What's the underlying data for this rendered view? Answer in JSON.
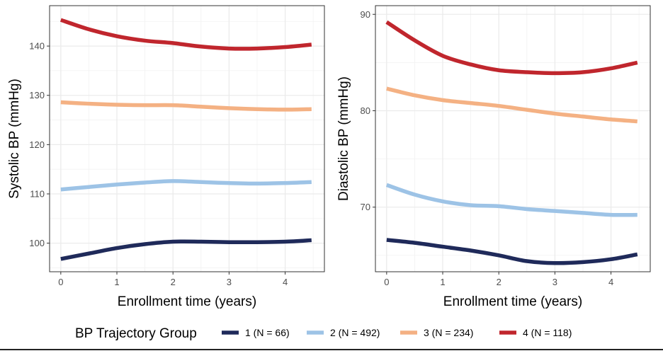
{
  "chart_data": [
    {
      "type": "line",
      "panel": "left",
      "xlabel": "Enrollment time (years)",
      "ylabel": "Systolic BP (mmHg)",
      "xlim": [
        -0.2,
        4.7
      ],
      "ylim": [
        94.2,
        148.2
      ],
      "xticks": [
        0,
        1,
        2,
        3,
        4
      ],
      "xtick_labels": [
        "0",
        "1",
        "2",
        "3",
        "4"
      ],
      "yticks": [
        100,
        110,
        120,
        130,
        140
      ],
      "ytick_labels": [
        "100",
        "110",
        "120",
        "130",
        "140"
      ],
      "grid": true,
      "series": [
        {
          "name": "1 (N = 66)",
          "color": "#1f2a5a",
          "x": [
            0,
            0.5,
            1,
            1.5,
            2,
            2.5,
            3,
            3.5,
            4,
            4.47
          ],
          "y": [
            96.8,
            97.9,
            99.0,
            99.8,
            100.3,
            100.3,
            100.2,
            100.2,
            100.3,
            100.6
          ]
        },
        {
          "name": "2 (N = 492)",
          "color": "#9dc3e6",
          "x": [
            0,
            0.5,
            1,
            1.5,
            2,
            2.5,
            3,
            3.5,
            4,
            4.47
          ],
          "y": [
            110.9,
            111.4,
            111.9,
            112.3,
            112.6,
            112.4,
            112.2,
            112.1,
            112.2,
            112.4
          ]
        },
        {
          "name": "3 (N = 234)",
          "color": "#f4b183",
          "x": [
            0,
            0.5,
            1,
            1.5,
            2,
            2.5,
            3,
            3.5,
            4,
            4.47
          ],
          "y": [
            128.6,
            128.3,
            128.1,
            128.0,
            128.0,
            127.7,
            127.4,
            127.2,
            127.1,
            127.2
          ]
        },
        {
          "name": "4 (N = 118)",
          "color": "#c0262d",
          "x": [
            0,
            0.5,
            1,
            1.5,
            2,
            2.5,
            3,
            3.5,
            4,
            4.47
          ],
          "y": [
            145.3,
            143.4,
            142.0,
            141.1,
            140.6,
            139.9,
            139.5,
            139.5,
            139.8,
            140.3
          ]
        }
      ]
    },
    {
      "type": "line",
      "panel": "right",
      "xlabel": "Enrollment time (years)",
      "ylabel": "Diastolic BP (mmHg)",
      "xlim": [
        -0.2,
        4.7
      ],
      "ylim": [
        63.3,
        90.9
      ],
      "xticks": [
        0,
        1,
        2,
        3,
        4
      ],
      "xtick_labels": [
        "0",
        "1",
        "2",
        "3",
        "4"
      ],
      "yticks": [
        70,
        80,
        90
      ],
      "ytick_labels": [
        "70",
        "80",
        "90"
      ],
      "grid": true,
      "series": [
        {
          "name": "1 (N = 66)",
          "color": "#1f2a5a",
          "x": [
            0,
            0.5,
            1,
            1.5,
            2,
            2.5,
            3,
            3.5,
            4,
            4.47
          ],
          "y": [
            66.6,
            66.3,
            65.9,
            65.5,
            65.0,
            64.4,
            64.2,
            64.3,
            64.6,
            65.1
          ]
        },
        {
          "name": "2 (N = 492)",
          "color": "#9dc3e6",
          "x": [
            0,
            0.5,
            1,
            1.5,
            2,
            2.5,
            3,
            3.5,
            4,
            4.47
          ],
          "y": [
            72.3,
            71.3,
            70.6,
            70.2,
            70.1,
            69.8,
            69.6,
            69.4,
            69.2,
            69.2
          ]
        },
        {
          "name": "3 (N = 234)",
          "color": "#f4b183",
          "x": [
            0,
            0.5,
            1,
            1.5,
            2,
            2.5,
            3,
            3.5,
            4,
            4.47
          ],
          "y": [
            82.3,
            81.6,
            81.1,
            80.8,
            80.5,
            80.1,
            79.7,
            79.4,
            79.1,
            78.9
          ]
        },
        {
          "name": "4 (N = 118)",
          "color": "#c0262d",
          "x": [
            0,
            0.5,
            1,
            1.5,
            2,
            2.5,
            3,
            3.5,
            4,
            4.47
          ],
          "y": [
            89.2,
            87.3,
            85.7,
            84.8,
            84.2,
            84.0,
            83.9,
            84.0,
            84.4,
            85.0
          ]
        }
      ]
    }
  ],
  "legend": {
    "title": "BP Trajectory Group",
    "position": "bottom",
    "entries": [
      {
        "label": "1 (N = 66)",
        "color": "#1f2a5a"
      },
      {
        "label": "2 (N = 492)",
        "color": "#9dc3e6"
      },
      {
        "label": "3 (N = 234)",
        "color": "#f4b183"
      },
      {
        "label": "4 (N = 118)",
        "color": "#c0262d"
      }
    ]
  }
}
